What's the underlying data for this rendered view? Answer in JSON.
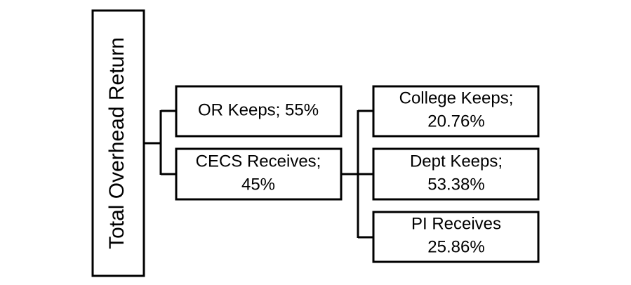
{
  "nodes": [
    {
      "lines": [
        "Total Overhead Return"
      ]
    },
    {
      "lines": [
        "OR Keeps; 55%"
      ]
    },
    {
      "lines": [
        "CECS Receives;",
        "45%"
      ]
    },
    {
      "lines": [
        "College Keeps;",
        "20.76%"
      ]
    },
    {
      "lines": [
        "Dept Keeps;",
        "53.38%"
      ]
    },
    {
      "lines": [
        "PI Receives",
        "25.86%"
      ]
    }
  ]
}
